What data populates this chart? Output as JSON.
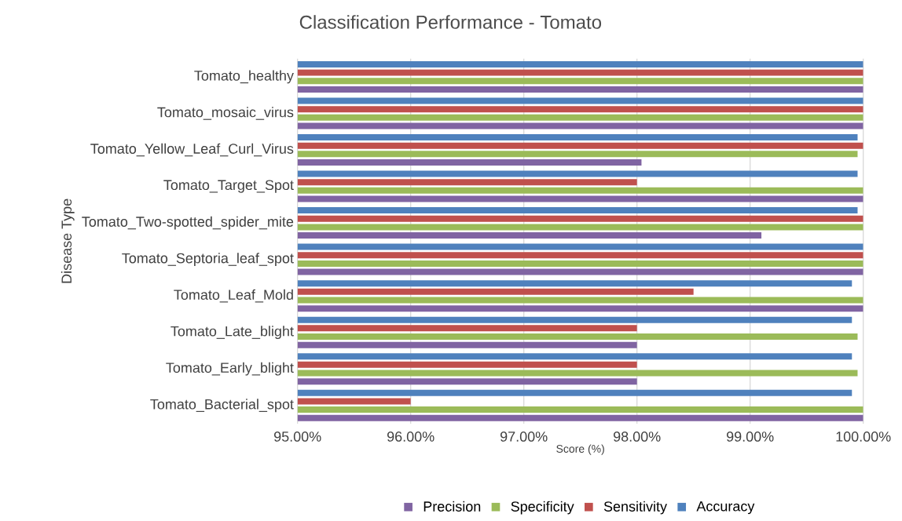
{
  "chart_data": {
    "type": "bar",
    "orientation": "horizontal",
    "title": "Classification Performance - Tomato",
    "xlabel": "Score (%)",
    "ylabel": "Disease Type",
    "categories": [
      "Tomato_healthy",
      "Tomato_mosaic_virus",
      "Tomato_Yellow_Leaf_Curl_Virus",
      "Tomato_Target_Spot",
      "Tomato_Two-spotted_spider_mite",
      "Tomato_Septoria_leaf_spot",
      "Tomato_Leaf_Mold",
      "Tomato_Late_blight",
      "Tomato_Early_blight",
      "Tomato_Bacterial_spot"
    ],
    "series": [
      {
        "name": "Precision",
        "color": "#8064a2",
        "values": [
          100,
          100,
          98.04,
          100,
          99.1,
          100,
          100,
          98,
          98,
          100
        ]
      },
      {
        "name": "Specificity",
        "color": "#9bbb59",
        "values": [
          100,
          100,
          99.95,
          100,
          100,
          100,
          100,
          99.95,
          99.95,
          100
        ]
      },
      {
        "name": "Sensitivity",
        "color": "#c0504d",
        "values": [
          100,
          100,
          100,
          98,
          100,
          100,
          98.5,
          98,
          98,
          96
        ]
      },
      {
        "name": "Accuracy",
        "color": "#4f81bd",
        "values": [
          100,
          100,
          99.95,
          99.95,
          99.95,
          100,
          99.9,
          99.9,
          99.9,
          99.9
        ]
      }
    ],
    "xlim": [
      95,
      100
    ],
    "xticks": [
      {
        "value": 95,
        "label": "95.00%"
      },
      {
        "value": 96,
        "label": "96.00%"
      },
      {
        "value": 97,
        "label": "97.00%"
      },
      {
        "value": 98,
        "label": "98.00%"
      },
      {
        "value": 99,
        "label": "99.00%"
      },
      {
        "value": 100,
        "label": "100.00%"
      }
    ],
    "grid": "x",
    "legend": "bottom"
  }
}
